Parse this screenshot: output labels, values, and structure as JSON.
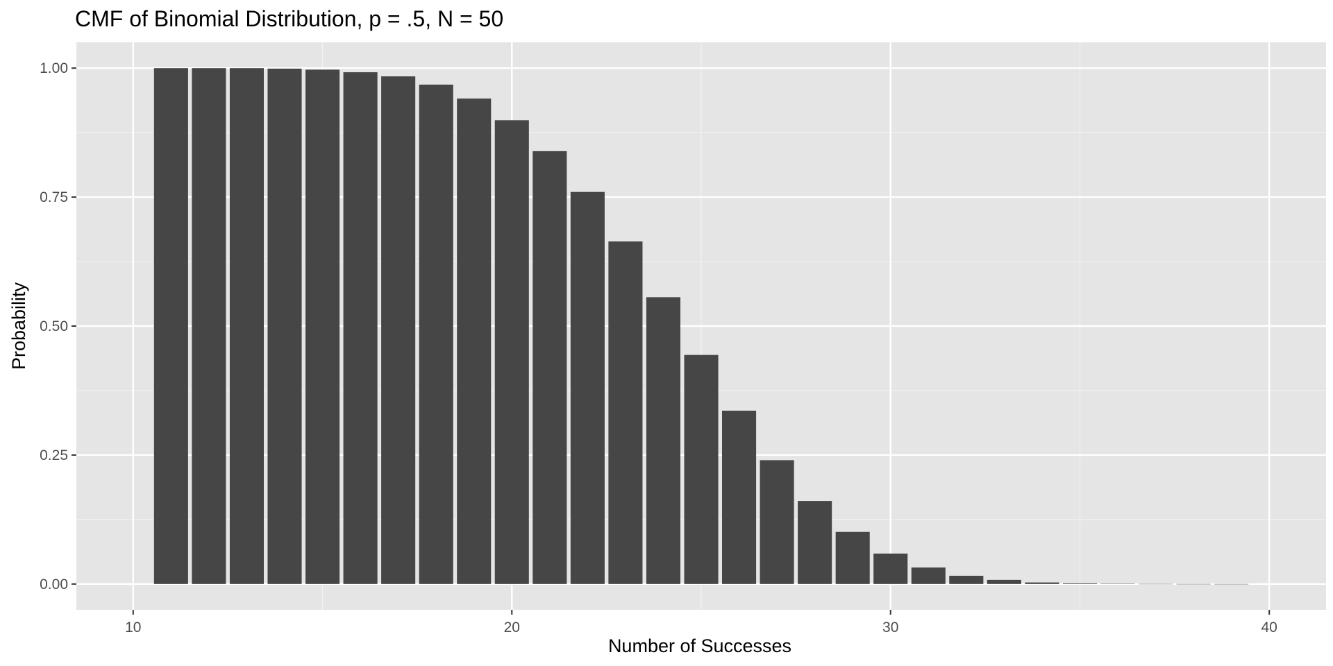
{
  "chart_data": {
    "type": "bar",
    "title": "CMF of Binomial Distribution, p = .5, N = 50",
    "xlabel": "Number of Successes",
    "ylabel": "Probability",
    "x": [
      11,
      12,
      13,
      14,
      15,
      16,
      17,
      18,
      19,
      20,
      21,
      22,
      23,
      24,
      25,
      26,
      27,
      28,
      29,
      30,
      31,
      32,
      33,
      34,
      35,
      36,
      37,
      38,
      39
    ],
    "values": [
      1.0,
      1.0,
      1.0,
      0.999,
      0.997,
      0.992,
      0.984,
      0.968,
      0.941,
      0.899,
      0.839,
      0.76,
      0.664,
      0.556,
      0.444,
      0.336,
      0.24,
      0.161,
      0.101,
      0.059,
      0.032,
      0.016,
      0.008,
      0.003,
      0.0013,
      0.0005,
      0.0002,
      5e-05,
      1e-05
    ],
    "xlim": [
      8.5,
      41.5
    ],
    "ylim": [
      -0.05,
      1.05
    ],
    "x_ticks": [
      10,
      20,
      30,
      40
    ],
    "y_ticks": [
      0,
      0.25,
      0.5,
      0.75,
      1.0
    ],
    "y_tick_labels": [
      "0.00",
      "0.25",
      "0.50",
      "0.75",
      "1.00"
    ],
    "x_tick_labels": [
      "10",
      "20",
      "30",
      "40"
    ],
    "grid": true,
    "legend": "none",
    "colors": {
      "panel_background": "#e5e5e5",
      "grid_major": "#ffffff",
      "grid_minor": "#f2f2f2",
      "bar_fill": "#464646",
      "axis_text": "#4d4d4d",
      "title_text": "#000000"
    }
  }
}
